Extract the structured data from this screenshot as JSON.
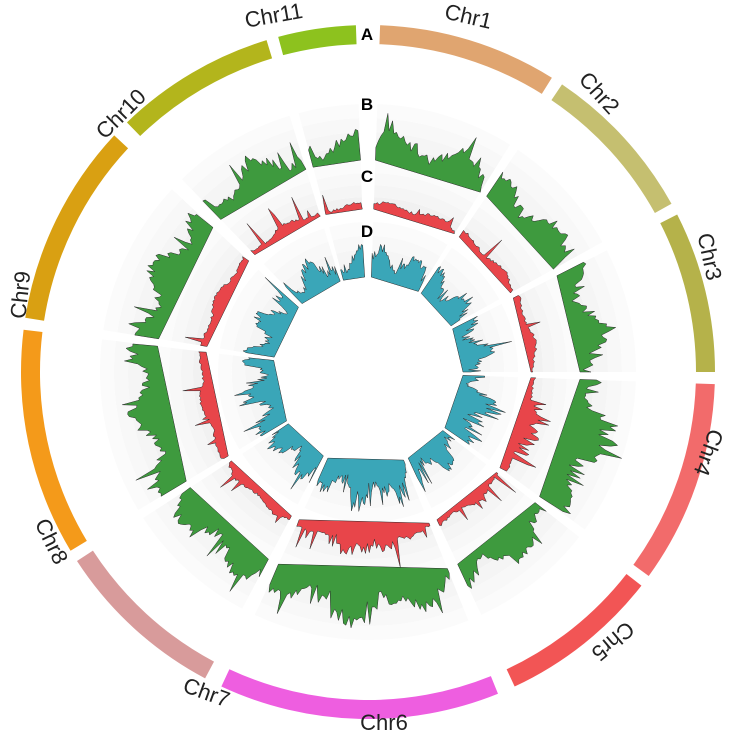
{
  "chart_data": {
    "type": "circos",
    "chromosomes": [
      {
        "name": "Chr1",
        "color": "#e0a570"
      },
      {
        "name": "Chr2",
        "color": "#c5bf70"
      },
      {
        "name": "Chr3",
        "color": "#b5b24a"
      },
      {
        "name": "Chr4",
        "color": "#f26b6b"
      },
      {
        "name": "Chr5",
        "color": "#f25555"
      },
      {
        "name": "Chr6",
        "color": "#ee5ee0"
      },
      {
        "name": "Chr7",
        "color": "#d89b9b"
      },
      {
        "name": "Chr8",
        "color": "#f49a1a"
      },
      {
        "name": "Chr9",
        "color": "#d9a012"
      },
      {
        "name": "Chr10",
        "color": "#b3b51c"
      },
      {
        "name": "Chr11",
        "color": "#8dc21e"
      }
    ],
    "tracks": [
      {
        "label": "A",
        "kind": "ideogram"
      },
      {
        "label": "B",
        "kind": "histogram",
        "color": "#3e9a3e"
      },
      {
        "label": "C",
        "kind": "histogram",
        "color": "#e8454a"
      },
      {
        "label": "D",
        "kind": "histogram",
        "color": "#3aa6b8"
      }
    ],
    "grid": true
  }
}
